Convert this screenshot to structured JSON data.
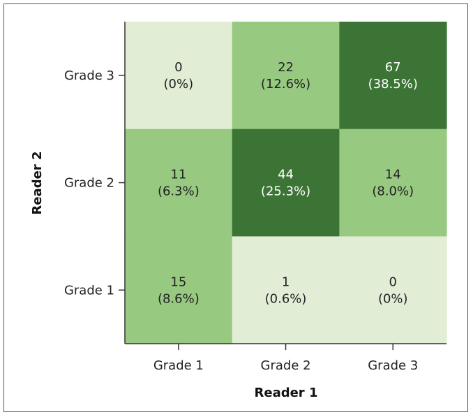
{
  "chart_data": {
    "type": "heatmap",
    "title": "",
    "xlabel": "Reader 1",
    "ylabel": "Reader 2",
    "x_categories": [
      "Grade 1",
      "Grade 2",
      "Grade 3"
    ],
    "y_categories": [
      "Grade 3",
      "Grade 2",
      "Grade 1"
    ],
    "cells": [
      [
        {
          "count": "0",
          "percent": "(0%)"
        },
        {
          "count": "22",
          "percent": "(12.6%)"
        },
        {
          "count": "67",
          "percent": "(38.5%)"
        }
      ],
      [
        {
          "count": "11",
          "percent": "(6.3%)"
        },
        {
          "count": "44",
          "percent": "(25.3%)"
        },
        {
          "count": "14",
          "percent": "(8.0%)"
        }
      ],
      [
        {
          "count": "15",
          "percent": "(8.6%)"
        },
        {
          "count": "1",
          "percent": "(0.6%)"
        },
        {
          "count": "0",
          "percent": "(0%)"
        }
      ]
    ],
    "colors": {
      "light": "#e2edd6",
      "medium": "#98c980",
      "dark": "#3b7435"
    },
    "grid": false,
    "legend": "none"
  }
}
